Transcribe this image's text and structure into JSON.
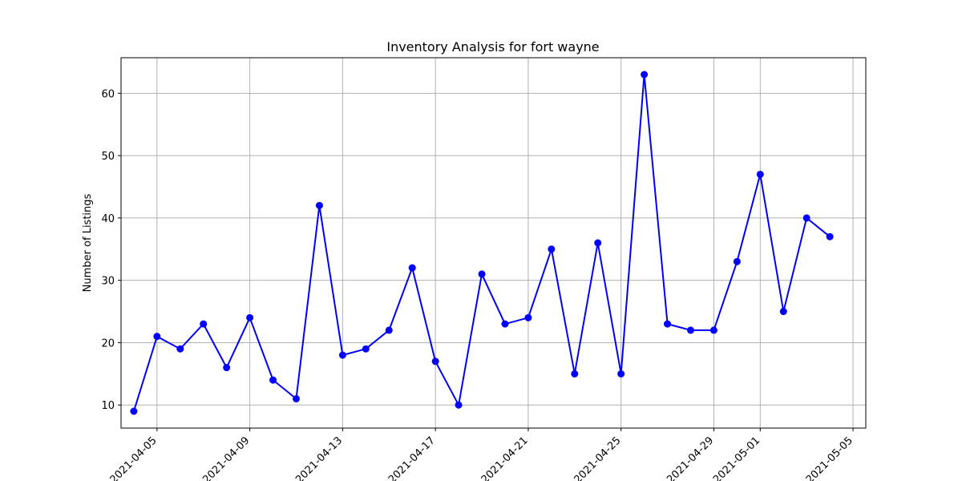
{
  "chart_data": {
    "type": "line",
    "title": "Inventory Analysis for fort wayne",
    "xlabel": "",
    "ylabel": "Number of Listings",
    "x": [
      "2021-04-04",
      "2021-04-05",
      "2021-04-06",
      "2021-04-07",
      "2021-04-08",
      "2021-04-09",
      "2021-04-10",
      "2021-04-11",
      "2021-04-12",
      "2021-04-13",
      "2021-04-14",
      "2021-04-15",
      "2021-04-16",
      "2021-04-17",
      "2021-04-18",
      "2021-04-19",
      "2021-04-20",
      "2021-04-21",
      "2021-04-22",
      "2021-04-23",
      "2021-04-24",
      "2021-04-25",
      "2021-04-26",
      "2021-04-27",
      "2021-04-28",
      "2021-04-29",
      "2021-04-30",
      "2021-05-01",
      "2021-05-02",
      "2021-05-03",
      "2021-05-04"
    ],
    "series": [
      {
        "values": [
          9,
          21,
          19,
          23,
          16,
          24,
          14,
          11,
          42,
          18,
          19,
          22,
          32,
          17,
          10,
          31,
          23,
          24,
          35,
          15,
          36,
          15,
          63,
          23,
          22,
          22,
          33,
          47,
          25,
          40,
          37
        ],
        "color": "#0000ff",
        "marker": "circle"
      }
    ],
    "xticks": [
      "2021-04-05",
      "2021-04-09",
      "2021-04-13",
      "2021-04-17",
      "2021-04-21",
      "2021-04-25",
      "2021-04-29",
      "2021-05-01",
      "2021-05-05"
    ],
    "yticks": [
      10,
      20,
      30,
      40,
      50,
      60
    ],
    "xlim": [
      "2021-04-03",
      "2021-05-05"
    ],
    "ylim": [
      6.3,
      65.7
    ],
    "grid": true,
    "legend": "none"
  }
}
